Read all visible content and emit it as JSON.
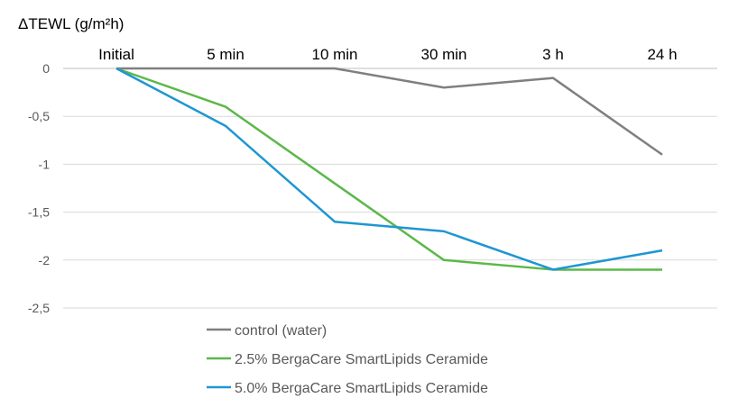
{
  "chart_data": {
    "type": "line",
    "title": "",
    "ylabel": "ΔTEWL (g/m²h)",
    "xlabel": "",
    "categories": [
      "Initial",
      "5 min",
      "10 min",
      "30 min",
      "3 h",
      "24 h"
    ],
    "x_axis_position": "top",
    "ylim": [
      -2.5,
      0
    ],
    "yticks": [
      0,
      -0.5,
      -1,
      -1.5,
      -2,
      -2.5
    ],
    "ytick_labels": [
      "0",
      "-0,5",
      "-1",
      "-1,5",
      "-2",
      "-2,5"
    ],
    "grid": true,
    "legend_position": "bottom",
    "series": [
      {
        "name": "control (water)",
        "color": "#7f7f7f",
        "values": [
          0,
          0,
          0,
          -0.2,
          -0.1,
          -0.9
        ]
      },
      {
        "name": "2.5% BergaCare SmartLipids Ceramide",
        "color": "#5cb84a",
        "values": [
          0,
          -0.4,
          -1.2,
          -2.0,
          -2.1,
          -2.1
        ]
      },
      {
        "name": "5.0% BergaCare SmartLipids Ceramide",
        "color": "#1e96d2",
        "values": [
          0,
          -0.6,
          -1.6,
          -1.7,
          -2.1,
          -1.9
        ]
      }
    ]
  }
}
